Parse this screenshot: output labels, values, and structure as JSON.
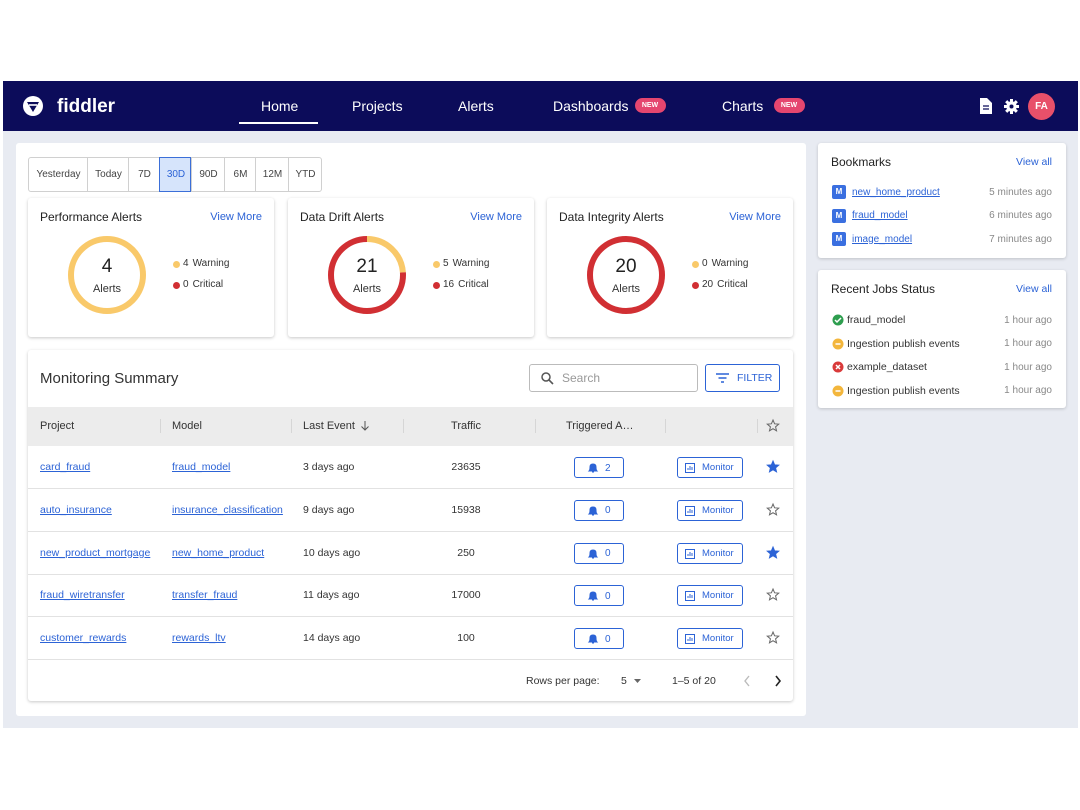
{
  "nav": {
    "brand": "fiddler",
    "items": [
      {
        "label": "Home",
        "active": true
      },
      {
        "label": "Projects"
      },
      {
        "label": "Alerts"
      },
      {
        "label": "Dashboards",
        "badge": "NEW"
      },
      {
        "label": "Charts",
        "badge": "NEW"
      }
    ],
    "avatar": "FA"
  },
  "time_filters": {
    "options": [
      "Yesterday",
      "Today",
      "7D",
      "30D",
      "90D",
      "6M",
      "12M",
      "YTD"
    ],
    "selected": 3
  },
  "alert_cards": [
    {
      "title": "Performance Alerts",
      "link": "View More",
      "total": 4,
      "total_label": "Alerts",
      "warning": 4,
      "warning_label": "Warning",
      "critical": 0,
      "critical_label": "Critical"
    },
    {
      "title": "Data Drift Alerts",
      "link": "View More",
      "total": 21,
      "total_label": "Alerts",
      "warning": 5,
      "warning_label": "Warning",
      "critical": 16,
      "critical_label": "Critical"
    },
    {
      "title": "Data Integrity Alerts",
      "link": "View More",
      "total": 20,
      "total_label": "Alerts",
      "warning": 0,
      "warning_label": "Warning",
      "critical": 20,
      "critical_label": "Critical"
    }
  ],
  "monitoring_summary": {
    "title": "Monitoring Summary",
    "search_placeholder": "Search",
    "filter": "FILTER",
    "columns": [
      "Project",
      "Model",
      "Last Event",
      "Traffic",
      "Triggered A…"
    ],
    "monitor_label": "Monitor",
    "rows": [
      {
        "project": "card_fraud",
        "model": "fraud_model",
        "last_event": "3 days ago",
        "traffic": 23635,
        "alerts": 2,
        "starred": true
      },
      {
        "project": "auto_insurance",
        "model": "insurance_classification",
        "last_event": "9 days ago",
        "traffic": 15938,
        "alerts": 0,
        "starred": false
      },
      {
        "project": "new_product_mortgage",
        "model": "new_home_product",
        "last_event": "10 days ago",
        "traffic": 250,
        "alerts": 0,
        "starred": true
      },
      {
        "project": "fraud_wiretransfer",
        "model": "transfer_fraud",
        "last_event": "11 days ago",
        "traffic": 17000,
        "alerts": 0,
        "starred": false
      },
      {
        "project": "customer_rewards",
        "model": "rewards_ltv",
        "last_event": "14 days ago",
        "traffic": 100,
        "alerts": 0,
        "starred": false
      }
    ],
    "rows_per_page_label": "Rows per page:",
    "rows_per_page": 5,
    "range": "1–5 of 20"
  },
  "bookmarks": {
    "title": "Bookmarks",
    "link": "View all",
    "items": [
      {
        "icon": "M",
        "name": "new_home_product",
        "time": "5 minutes ago"
      },
      {
        "icon": "M",
        "name": "fraud_model",
        "time": "6 minutes ago"
      },
      {
        "icon": "M",
        "name": "image_model",
        "time": "7 minutes ago"
      }
    ]
  },
  "recent_jobs": {
    "title": "Recent Jobs Status",
    "link": "View all",
    "items": [
      {
        "status": "success",
        "name": "fraud_model",
        "time": "1 hour ago"
      },
      {
        "status": "pending",
        "name": "Ingestion publish events",
        "time": "1 hour ago"
      },
      {
        "status": "error",
        "name": "example_dataset",
        "time": "1 hour ago"
      },
      {
        "status": "pending",
        "name": "Ingestion publish events",
        "time": "1 hour ago"
      }
    ]
  }
}
